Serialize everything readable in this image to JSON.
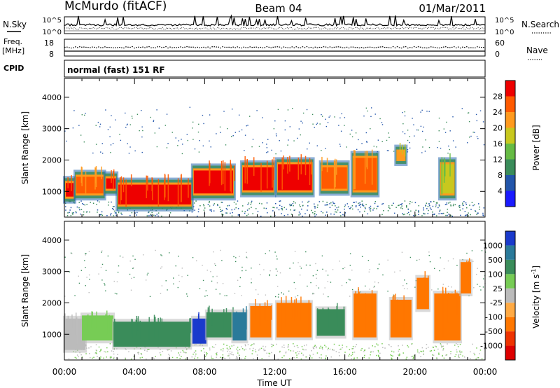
{
  "header": {
    "station": "McMurdo (fitACF)",
    "beam": "Beam 04",
    "date": "01/Mar/2011"
  },
  "side_labels": {
    "nsky": "N.Sky",
    "freq_line1": "Freq.",
    "freq_line2": "[MHz]",
    "cpid": "CPID",
    "nsearch": "N.Search",
    "nave": "Nave"
  },
  "strip_axes": {
    "noise_left_top": "10^5",
    "noise_left_bottom": "10^0",
    "noise_right_top": "10^5",
    "noise_right_bottom": "10^0",
    "freq_left_top": "18",
    "freq_left_bottom": "8",
    "nave_right_top": "60",
    "nave_right_bottom": "0"
  },
  "cpid_text": "normal (fast) 151 RF",
  "x_axis": {
    "label": "Time UT",
    "ticks": [
      "00:00",
      "04:00",
      "08:00",
      "12:00",
      "16:00",
      "20:00",
      "00:00"
    ]
  },
  "power_panel": {
    "ylabel": "Slant Range [km]",
    "yticks": [
      "1000",
      "2000",
      "3000",
      "4000"
    ],
    "cbar_label": "Power [dB]",
    "cbar_ticks": [
      "4",
      "8",
      "12",
      "16",
      "20",
      "24",
      "28"
    ],
    "cbar_colors": [
      "#1a1aff",
      "#2255aa",
      "#3a8c5a",
      "#66bb44",
      "#c8c81e",
      "#ff9a1e",
      "#ff5a00",
      "#ee0000"
    ]
  },
  "velocity_panel": {
    "ylabel": "Slant Range [km]",
    "yticks": [
      "1000",
      "2000",
      "3000",
      "4000"
    ],
    "cbar_label": "Velocity [m s",
    "cbar_label_sup": "-1",
    "cbar_label_end": "]",
    "cbar_ticks": [
      "1000",
      "500",
      "100",
      "25",
      "-25",
      "-100",
      "-500",
      "-1000"
    ],
    "cbar_colors": [
      "#1a3acc",
      "#2a7a9a",
      "#3a8c5a",
      "#77cc55",
      "#bbbbbb",
      "#ffaa44",
      "#ff7700",
      "#ee3300",
      "#dd0000"
    ]
  },
  "chart_data": [
    {
      "type": "heatmap",
      "title": "Power",
      "x_range_hours": [
        0,
        24
      ],
      "ylim_km": [
        180,
        4600
      ],
      "colorbar_range_db": [
        0,
        32
      ],
      "echo_regions": [
        {
          "t0": 0.0,
          "t1": 0.6,
          "r0": 700,
          "r1": 1400,
          "power_db": 28
        },
        {
          "t0": 0.6,
          "t1": 2.3,
          "r0": 800,
          "r1": 1600,
          "power_db": 24
        },
        {
          "t0": 2.3,
          "t1": 3.0,
          "r0": 950,
          "r1": 1550,
          "power_db": 30
        },
        {
          "t0": 3.0,
          "t1": 7.3,
          "r0": 450,
          "r1": 1350,
          "power_db": 30
        },
        {
          "t0": 7.3,
          "t1": 9.7,
          "r0": 800,
          "r1": 1800,
          "power_db": 28
        },
        {
          "t0": 10.1,
          "t1": 12.0,
          "r0": 900,
          "r1": 1900,
          "power_db": 28
        },
        {
          "t0": 12.1,
          "t1": 14.2,
          "r0": 900,
          "r1": 2000,
          "power_db": 28
        },
        {
          "t0": 14.6,
          "t1": 16.2,
          "r0": 950,
          "r1": 1900,
          "power_db": 26
        },
        {
          "t0": 16.4,
          "t1": 17.9,
          "r0": 900,
          "r1": 2200,
          "power_db": 26
        },
        {
          "t0": 18.9,
          "t1": 19.5,
          "r0": 1900,
          "r1": 2400,
          "power_db": 22
        },
        {
          "t0": 21.4,
          "t1": 22.3,
          "r0": 800,
          "r1": 2000,
          "power_db": 18
        }
      ]
    },
    {
      "type": "heatmap",
      "title": "Velocity",
      "x_range_hours": [
        0,
        24
      ],
      "ylim_km": [
        180,
        4600
      ],
      "colorbar_range_ms": [
        -1000,
        1000
      ],
      "echo_regions": [
        {
          "t0": 0.0,
          "t1": 1.2,
          "r0": 500,
          "r1": 1500,
          "velocity_ms": 0
        },
        {
          "t0": 1.0,
          "t1": 2.8,
          "r0": 800,
          "r1": 1600,
          "velocity_ms": 60
        },
        {
          "t0": 2.8,
          "t1": 7.2,
          "r0": 600,
          "r1": 1400,
          "velocity_ms": 300
        },
        {
          "t0": 7.3,
          "t1": 8.1,
          "r0": 700,
          "r1": 1500,
          "velocity_ms": 1000
        },
        {
          "t0": 8.1,
          "t1": 9.6,
          "r0": 900,
          "r1": 1700,
          "velocity_ms": 300
        },
        {
          "t0": 9.6,
          "t1": 10.4,
          "r0": 800,
          "r1": 1700,
          "velocity_ms": 800
        },
        {
          "t0": 10.6,
          "t1": 11.8,
          "r0": 900,
          "r1": 1900,
          "velocity_ms": -300
        },
        {
          "t0": 12.1,
          "t1": 14.1,
          "r0": 900,
          "r1": 2000,
          "velocity_ms": -300
        },
        {
          "t0": 14.4,
          "t1": 16.0,
          "r0": 950,
          "r1": 1800,
          "velocity_ms": 200
        },
        {
          "t0": 16.5,
          "t1": 17.8,
          "r0": 900,
          "r1": 2300,
          "velocity_ms": -400
        },
        {
          "t0": 18.6,
          "t1": 19.8,
          "r0": 900,
          "r1": 2100,
          "velocity_ms": -400
        },
        {
          "t0": 20.1,
          "t1": 20.8,
          "r0": 1800,
          "r1": 2800,
          "velocity_ms": -400
        },
        {
          "t0": 21.1,
          "t1": 22.6,
          "r0": 800,
          "r1": 2300,
          "velocity_ms": -500
        },
        {
          "t0": 22.6,
          "t1": 23.2,
          "r0": 2300,
          "r1": 3300,
          "velocity_ms": -300
        }
      ]
    }
  ]
}
